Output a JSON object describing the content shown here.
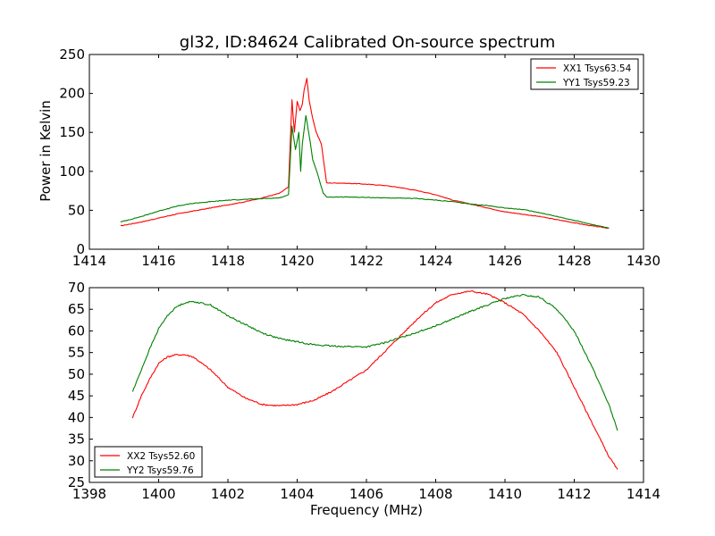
{
  "title": "gl32, ID:84624 Calibrated On-source spectrum",
  "colors": {
    "red": "#ff0000",
    "green": "#008000"
  },
  "chart_data": [
    {
      "type": "line",
      "ylabel": "Power in Kelvin",
      "xlabel": "",
      "xlim": [
        1414,
        1430
      ],
      "ylim": [
        0,
        250
      ],
      "xticks": [
        "1414",
        "1416",
        "1418",
        "1420",
        "1422",
        "1424",
        "1426",
        "1428",
        "1430"
      ],
      "yticks": [
        "0",
        "50",
        "100",
        "150",
        "200",
        "250"
      ],
      "legend_position": "top-right",
      "series": [
        {
          "name": "XX1 Tsys63.54",
          "color": "#ff0000",
          "points": [
            [
              1414.9,
              30
            ],
            [
              1415.5,
              35
            ],
            [
              1416.0,
              40
            ],
            [
              1416.5,
              45
            ],
            [
              1417.0,
              49
            ],
            [
              1417.5,
              53
            ],
            [
              1418.0,
              57
            ],
            [
              1418.5,
              61
            ],
            [
              1419.0,
              66
            ],
            [
              1419.5,
              72
            ],
            [
              1419.75,
              80
            ],
            [
              1419.85,
              192
            ],
            [
              1419.92,
              150
            ],
            [
              1420.0,
              190
            ],
            [
              1420.08,
              178
            ],
            [
              1420.15,
              186
            ],
            [
              1420.2,
              205
            ],
            [
              1420.28,
              219
            ],
            [
              1420.35,
              190
            ],
            [
              1420.45,
              168
            ],
            [
              1420.55,
              150
            ],
            [
              1420.7,
              135
            ],
            [
              1420.85,
              85
            ],
            [
              1421.2,
              85
            ],
            [
              1421.8,
              84
            ],
            [
              1422.5,
              82
            ],
            [
              1423.0,
              79
            ],
            [
              1423.5,
              75
            ],
            [
              1424.0,
              70
            ],
            [
              1424.5,
              63
            ],
            [
              1425.0,
              58
            ],
            [
              1425.5,
              53
            ],
            [
              1426.0,
              48
            ],
            [
              1426.5,
              45
            ],
            [
              1427.0,
              42
            ],
            [
              1427.5,
              38
            ],
            [
              1428.0,
              34
            ],
            [
              1428.5,
              30
            ],
            [
              1429.0,
              27
            ]
          ]
        },
        {
          "name": "YY1 Tsys59.23",
          "color": "#008000",
          "points": [
            [
              1414.9,
              35
            ],
            [
              1415.5,
              42
            ],
            [
              1416.0,
              49
            ],
            [
              1416.5,
              55
            ],
            [
              1417.0,
              59
            ],
            [
              1417.5,
              61
            ],
            [
              1418.0,
              63
            ],
            [
              1418.5,
              64
            ],
            [
              1419.0,
              65
            ],
            [
              1419.5,
              66
            ],
            [
              1419.75,
              70
            ],
            [
              1419.85,
              158
            ],
            [
              1419.95,
              128
            ],
            [
              1420.05,
              150
            ],
            [
              1420.1,
              100
            ],
            [
              1420.15,
              135
            ],
            [
              1420.25,
              172
            ],
            [
              1420.35,
              145
            ],
            [
              1420.45,
              115
            ],
            [
              1420.6,
              95
            ],
            [
              1420.75,
              72
            ],
            [
              1420.85,
              67
            ],
            [
              1421.5,
              67
            ],
            [
              1422.5,
              66
            ],
            [
              1423.5,
              65
            ],
            [
              1424.0,
              63
            ],
            [
              1424.5,
              61
            ],
            [
              1425.0,
              58
            ],
            [
              1425.5,
              56
            ],
            [
              1426.0,
              53
            ],
            [
              1426.5,
              51
            ],
            [
              1427.0,
              47
            ],
            [
              1427.5,
              42
            ],
            [
              1428.0,
              37
            ],
            [
              1428.5,
              32
            ],
            [
              1429.0,
              27
            ]
          ]
        }
      ]
    },
    {
      "type": "line",
      "ylabel": "",
      "xlabel": "Frequency (MHz)",
      "xlim": [
        1398,
        1414
      ],
      "ylim": [
        25,
        70
      ],
      "xticks": [
        "1398",
        "1400",
        "1402",
        "1404",
        "1406",
        "1408",
        "1410",
        "1412",
        "1414"
      ],
      "yticks": [
        "25",
        "30",
        "35",
        "40",
        "45",
        "50",
        "55",
        "60",
        "65",
        "70"
      ],
      "legend_position": "bottom-left",
      "series": [
        {
          "name": "XX2 Tsys52.60",
          "color": "#ff0000",
          "points": [
            [
              1399.25,
              40
            ],
            [
              1399.5,
              45
            ],
            [
              1399.75,
              49
            ],
            [
              1400.0,
              52.5
            ],
            [
              1400.25,
              54
            ],
            [
              1400.5,
              54.5
            ],
            [
              1400.75,
              54.5
            ],
            [
              1401.0,
              54
            ],
            [
              1401.5,
              51
            ],
            [
              1402.0,
              47
            ],
            [
              1402.5,
              44.5
            ],
            [
              1403.0,
              43
            ],
            [
              1403.5,
              42.7
            ],
            [
              1404.0,
              43
            ],
            [
              1404.5,
              44
            ],
            [
              1405.0,
              46
            ],
            [
              1405.5,
              48.5
            ],
            [
              1406.0,
              51
            ],
            [
              1406.5,
              55
            ],
            [
              1407.0,
              59
            ],
            [
              1407.5,
              63
            ],
            [
              1408.0,
              66.5
            ],
            [
              1408.5,
              68.5
            ],
            [
              1409.0,
              69.2
            ],
            [
              1409.5,
              68.5
            ],
            [
              1410.0,
              66.5
            ],
            [
              1410.5,
              64
            ],
            [
              1411.0,
              60
            ],
            [
              1411.5,
              55
            ],
            [
              1412.0,
              47
            ],
            [
              1412.5,
              39
            ],
            [
              1413.0,
              31
            ],
            [
              1413.25,
              28
            ]
          ]
        },
        {
          "name": "YY2 Tsys59.76",
          "color": "#008000",
          "points": [
            [
              1399.25,
              46
            ],
            [
              1399.5,
              51
            ],
            [
              1399.75,
              56
            ],
            [
              1400.0,
              60.5
            ],
            [
              1400.25,
              63.5
            ],
            [
              1400.5,
              65.5
            ],
            [
              1400.75,
              66.5
            ],
            [
              1401.0,
              66.8
            ],
            [
              1401.5,
              66
            ],
            [
              1402.0,
              63.5
            ],
            [
              1402.5,
              61.5
            ],
            [
              1403.0,
              59.5
            ],
            [
              1403.5,
              58.2
            ],
            [
              1404.0,
              57.5
            ],
            [
              1404.5,
              56.8
            ],
            [
              1405.0,
              56.5
            ],
            [
              1405.5,
              56.4
            ],
            [
              1406.0,
              56.3
            ],
            [
              1406.5,
              57.2
            ],
            [
              1407.0,
              58.5
            ],
            [
              1407.5,
              59.8
            ],
            [
              1408.0,
              61.2
            ],
            [
              1408.5,
              62.8
            ],
            [
              1409.0,
              64.5
            ],
            [
              1409.5,
              66
            ],
            [
              1410.0,
              67.5
            ],
            [
              1410.5,
              68.3
            ],
            [
              1411.0,
              67.8
            ],
            [
              1411.5,
              65
            ],
            [
              1412.0,
              60
            ],
            [
              1412.5,
              52
            ],
            [
              1413.0,
              43
            ],
            [
              1413.25,
              37
            ]
          ]
        }
      ]
    }
  ]
}
